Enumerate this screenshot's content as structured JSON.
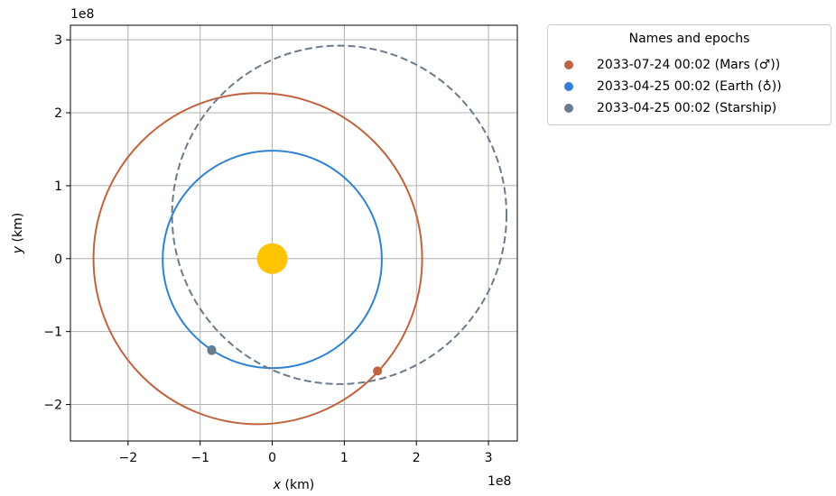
{
  "chart_data": {
    "type": "scatter",
    "title": "",
    "xlabel": "x (km)",
    "ylabel": "y (km)",
    "xlabel_var": "x",
    "ylabel_var": "y",
    "axis_unit": " (km)",
    "x_offset_text": "1e8",
    "y_offset_text": "1e8",
    "xlim": [
      -2.8,
      3.4
    ],
    "ylim": [
      -2.5,
      3.2
    ],
    "x_ticks": [
      -2,
      -1,
      0,
      1,
      2,
      3
    ],
    "y_ticks": [
      -2,
      -1,
      0,
      1,
      2,
      3
    ],
    "x_tick_labels": [
      "−2",
      "−1",
      "0",
      "1",
      "2",
      "3"
    ],
    "y_tick_labels": [
      "−2",
      "−1",
      "0",
      "1",
      "2",
      "3"
    ],
    "grid": true,
    "legend_placement": "outside-top-right",
    "sun": {
      "x": 0,
      "y": 0,
      "color": "#FFC300"
    },
    "orbits": [
      {
        "body": "Mars",
        "color": "#C1633F",
        "style": "solid",
        "center": [
          -0.2,
          0.0
        ],
        "semi_axis_x": 2.28,
        "semi_axis_y": 2.27
      },
      {
        "body": "Earth",
        "color": "#2F82D0",
        "style": "solid",
        "center": [
          0.0,
          -0.01
        ],
        "semi_axis_x": 1.52,
        "semi_axis_y": 1.49
      },
      {
        "body": "Starship",
        "color": "#6B7B8E",
        "style": "dashed",
        "center": [
          0.93,
          0.6
        ],
        "semi_axis_x": 2.32,
        "semi_axis_y": 2.32
      }
    ],
    "points": [
      {
        "label": "2033-07-24 00:02 (Mars (♂))",
        "x": 1.46,
        "y": -1.54,
        "color": "#C1633F"
      },
      {
        "label": "2033-04-25 00:02 (Earth (♁))",
        "x": -0.84,
        "y": -1.25,
        "color": "#2F82D0",
        "hidden_behind": true
      },
      {
        "label": "2033-04-25 00:02 (Starship)",
        "x": -0.84,
        "y": -1.26,
        "color": "#6B7B8E"
      }
    ]
  },
  "legend": {
    "title": "Names and epochs",
    "entries": [
      {
        "label": "2033-07-24 00:02 (Mars (♂))",
        "color": "#C1633F"
      },
      {
        "label": "2033-04-25 00:02 (Earth (♁))",
        "color": "#2F82D0"
      },
      {
        "label": "2033-04-25 00:02 (Starship)",
        "color": "#6B7B8E"
      }
    ]
  }
}
